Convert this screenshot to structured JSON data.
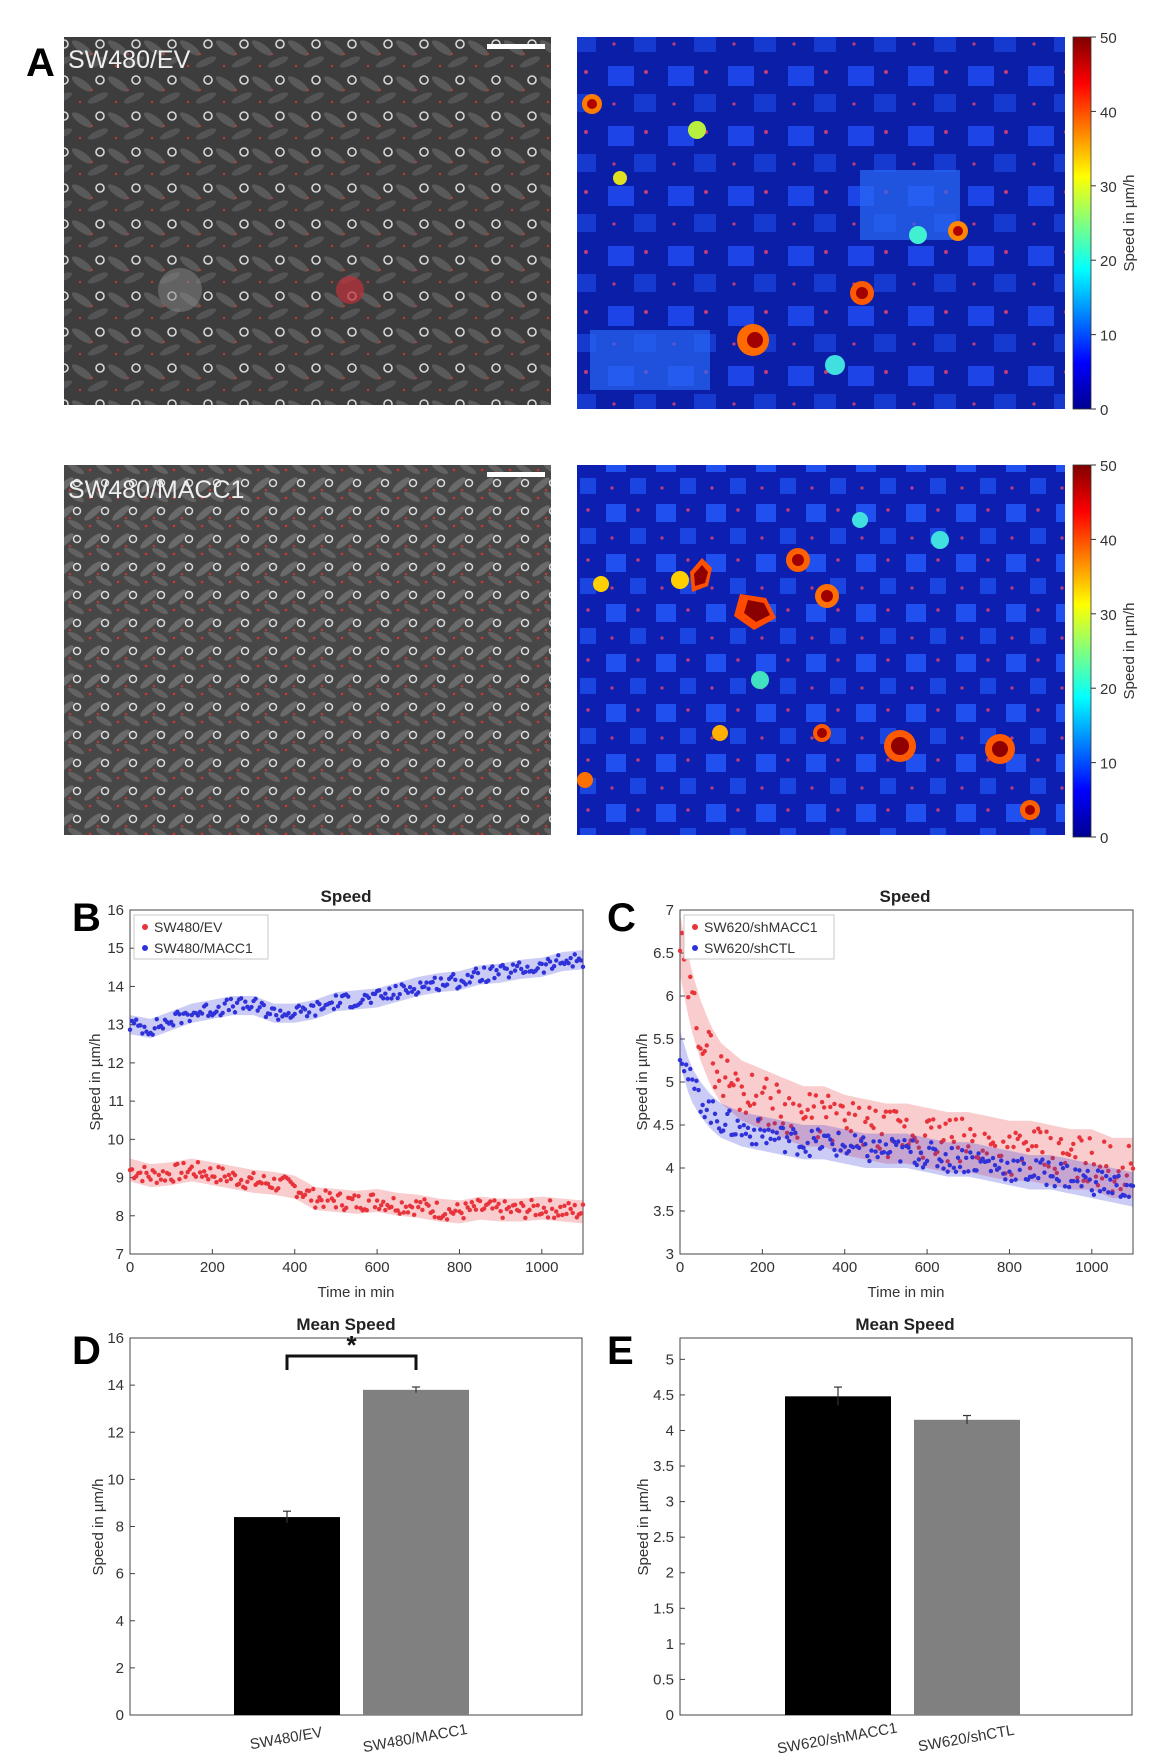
{
  "panel_labels": {
    "a": "A",
    "b": "B",
    "c": "C",
    "d": "D",
    "e": "E"
  },
  "colors": {
    "ev": "#e8333b",
    "macc1": "#2f32d8",
    "bar_dark": "#000000",
    "bar_grey": "#808080"
  },
  "images": {
    "top_left": {
      "label": "SW480/EV"
    },
    "bottom_left": {
      "label": "SW480/MACC1"
    },
    "colorbar": {
      "label": "Speed in µm/h",
      "ticks": [
        0,
        10,
        20,
        30,
        40,
        50
      ]
    }
  },
  "chart_data": [
    {
      "id": "B",
      "type": "line",
      "title": "Speed",
      "xlabel": "Time in min",
      "ylabel": "Speed in µm/h",
      "xlim": [
        0,
        1100
      ],
      "ylim": [
        7,
        16
      ],
      "xticks": [
        0,
        200,
        400,
        600,
        800,
        1000
      ],
      "yticks": [
        7,
        8,
        9,
        10,
        11,
        12,
        13,
        14,
        15,
        16
      ],
      "legend_position": "top-left",
      "series": [
        {
          "name": "SW480/EV",
          "color": "#e8333b",
          "band": 0.3,
          "x": [
            0,
            50,
            100,
            150,
            200,
            250,
            300,
            350,
            400,
            450,
            500,
            550,
            600,
            650,
            700,
            750,
            800,
            850,
            900,
            950,
            1000,
            1050,
            1100
          ],
          "y": [
            9.2,
            9.05,
            9.1,
            9.2,
            9.1,
            9.0,
            8.9,
            8.85,
            8.75,
            8.45,
            8.4,
            8.35,
            8.4,
            8.3,
            8.25,
            8.15,
            8.1,
            8.2,
            8.15,
            8.15,
            8.2,
            8.15,
            8.1
          ]
        },
        {
          "name": "SW480/MACC1",
          "color": "#2f32d8",
          "band": 0.25,
          "x": [
            0,
            50,
            100,
            150,
            200,
            250,
            300,
            350,
            400,
            450,
            500,
            550,
            600,
            650,
            700,
            750,
            800,
            850,
            900,
            950,
            1000,
            1050,
            1100
          ],
          "y": [
            13.0,
            12.9,
            13.1,
            13.3,
            13.4,
            13.5,
            13.5,
            13.3,
            13.3,
            13.4,
            13.6,
            13.65,
            13.7,
            13.85,
            14.0,
            14.1,
            14.15,
            14.3,
            14.35,
            14.45,
            14.5,
            14.65,
            14.7
          ]
        }
      ]
    },
    {
      "id": "C",
      "type": "line",
      "title": "Speed",
      "xlabel": "Time in min",
      "ylabel": "Speed in µm/h",
      "xlim": [
        0,
        1100
      ],
      "ylim": [
        3,
        7
      ],
      "xticks": [
        0,
        200,
        400,
        600,
        800,
        1000
      ],
      "yticks": [
        3,
        3.5,
        4,
        4.5,
        5,
        5.5,
        6,
        6.5,
        7
      ],
      "legend_position": "top-left",
      "series": [
        {
          "name": "SW620/shMACC1",
          "color": "#e8333b",
          "band": 0.35,
          "x": [
            0,
            25,
            50,
            75,
            100,
            150,
            200,
            250,
            300,
            350,
            400,
            450,
            500,
            550,
            600,
            650,
            700,
            750,
            800,
            850,
            900,
            950,
            1000,
            1050,
            1100
          ],
          "y": [
            6.6,
            6.0,
            5.6,
            5.3,
            5.1,
            4.9,
            4.8,
            4.7,
            4.6,
            4.6,
            4.5,
            4.45,
            4.4,
            4.4,
            4.35,
            4.3,
            4.3,
            4.25,
            4.2,
            4.2,
            4.15,
            4.1,
            4.1,
            4.0,
            4.0
          ]
        },
        {
          "name": "SW620/shCTL",
          "color": "#2f32d8",
          "band": 0.2,
          "x": [
            0,
            25,
            50,
            75,
            100,
            150,
            200,
            250,
            300,
            350,
            400,
            450,
            500,
            550,
            600,
            650,
            700,
            750,
            800,
            850,
            900,
            950,
            1000,
            1050,
            1100
          ],
          "y": [
            5.4,
            5.0,
            4.8,
            4.65,
            4.55,
            4.45,
            4.4,
            4.35,
            4.3,
            4.3,
            4.25,
            4.2,
            4.2,
            4.2,
            4.15,
            4.1,
            4.1,
            4.05,
            4.0,
            3.95,
            3.95,
            3.9,
            3.85,
            3.8,
            3.75
          ]
        }
      ]
    },
    {
      "id": "D",
      "type": "bar",
      "title": "Mean Speed",
      "ylabel": "Speed in µm/h",
      "ylim": [
        0,
        16
      ],
      "yticks": [
        0,
        2,
        4,
        6,
        8,
        10,
        12,
        14,
        16
      ],
      "categories": [
        "SW480/EV",
        "SW480/MACC1"
      ],
      "values": [
        8.4,
        13.8
      ],
      "errors": [
        0.25,
        0.12
      ],
      "colors": [
        "#000000",
        "#808080"
      ],
      "significance": "*"
    },
    {
      "id": "E",
      "type": "bar",
      "title": "Mean Speed",
      "ylabel": "Speed in µm/h",
      "ylim": [
        0,
        5.3
      ],
      "yticks": [
        0,
        0.5,
        1,
        1.5,
        2,
        2.5,
        3,
        3.5,
        4,
        4.5,
        5
      ],
      "categories": [
        "SW620/shMACC1",
        "SW620/shCTL"
      ],
      "values": [
        4.48,
        4.15
      ],
      "errors": [
        0.13,
        0.06
      ],
      "colors": [
        "#000000",
        "#808080"
      ]
    }
  ]
}
